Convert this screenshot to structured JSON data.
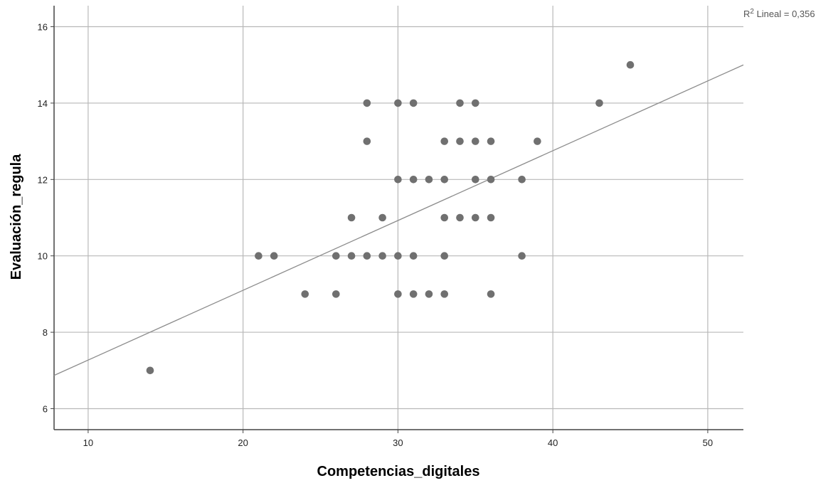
{
  "chart_data": {
    "type": "scatter",
    "xlabel": "Competencias_digitales",
    "ylabel": "Evaluación_regula",
    "xlim": [
      7.8,
      52.3
    ],
    "ylim": [
      5.45,
      16.55
    ],
    "xticks": [
      10,
      20,
      30,
      40,
      50
    ],
    "yticks": [
      6,
      8,
      10,
      12,
      14,
      16
    ],
    "grid": true,
    "colors": {
      "points": "#707070",
      "grid": "#b8b8b8",
      "fit_line": "#8c8c8c",
      "axis": "#444444"
    },
    "points": [
      {
        "x": 14,
        "y": 7
      },
      {
        "x": 21,
        "y": 10
      },
      {
        "x": 22,
        "y": 10
      },
      {
        "x": 24,
        "y": 9
      },
      {
        "x": 26,
        "y": 9
      },
      {
        "x": 26,
        "y": 10
      },
      {
        "x": 27,
        "y": 10
      },
      {
        "x": 27,
        "y": 11
      },
      {
        "x": 28,
        "y": 10
      },
      {
        "x": 28,
        "y": 13
      },
      {
        "x": 28,
        "y": 14
      },
      {
        "x": 29,
        "y": 10
      },
      {
        "x": 29,
        "y": 11
      },
      {
        "x": 30,
        "y": 9
      },
      {
        "x": 30,
        "y": 10
      },
      {
        "x": 30,
        "y": 12
      },
      {
        "x": 30,
        "y": 14
      },
      {
        "x": 31,
        "y": 9
      },
      {
        "x": 31,
        "y": 10
      },
      {
        "x": 31,
        "y": 12
      },
      {
        "x": 31,
        "y": 14
      },
      {
        "x": 32,
        "y": 9
      },
      {
        "x": 32,
        "y": 12
      },
      {
        "x": 33,
        "y": 9
      },
      {
        "x": 33,
        "y": 10
      },
      {
        "x": 33,
        "y": 11
      },
      {
        "x": 33,
        "y": 12
      },
      {
        "x": 33,
        "y": 13
      },
      {
        "x": 34,
        "y": 11
      },
      {
        "x": 34,
        "y": 13
      },
      {
        "x": 34,
        "y": 14
      },
      {
        "x": 35,
        "y": 11
      },
      {
        "x": 35,
        "y": 12
      },
      {
        "x": 35,
        "y": 13
      },
      {
        "x": 35,
        "y": 14
      },
      {
        "x": 36,
        "y": 9
      },
      {
        "x": 36,
        "y": 11
      },
      {
        "x": 36,
        "y": 12
      },
      {
        "x": 36,
        "y": 13
      },
      {
        "x": 38,
        "y": 10
      },
      {
        "x": 38,
        "y": 12
      },
      {
        "x": 39,
        "y": 13
      },
      {
        "x": 43,
        "y": 14
      },
      {
        "x": 45,
        "y": 15
      }
    ],
    "fit_line": {
      "x": [
        7.8,
        52.3
      ],
      "y": [
        6.87,
        15.0
      ]
    },
    "annotation": {
      "r2_label": "R",
      "r2_superscript": "2",
      "r2_text": " Lineal = 0,356"
    }
  }
}
